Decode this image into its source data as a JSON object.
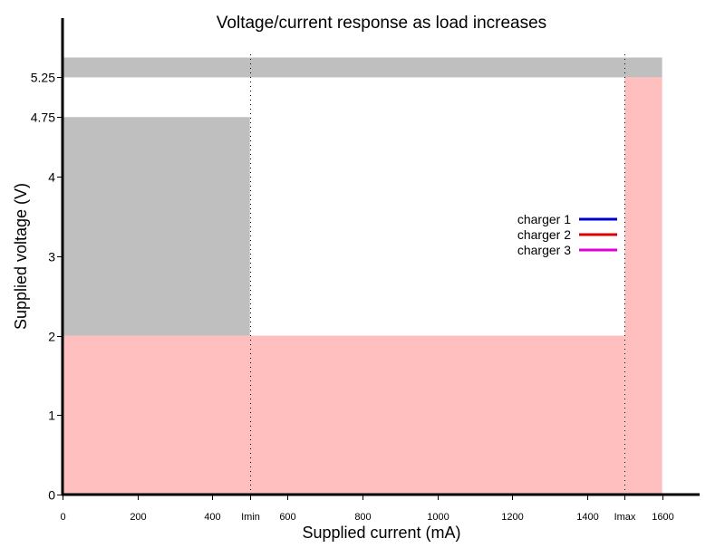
{
  "chart_data": {
    "type": "area",
    "title": "Voltage/current response as load increases",
    "xlabel": "Supplied current (mA)",
    "ylabel": "Supplied voltage (V)",
    "xlim": [
      0,
      1700
    ],
    "ylim": [
      0,
      5.95
    ],
    "xticks": [
      {
        "value": 0,
        "label": "0"
      },
      {
        "value": 200,
        "label": "200"
      },
      {
        "value": 400,
        "label": "400"
      },
      {
        "value": 500,
        "label": "Imin"
      },
      {
        "value": 600,
        "label": "600"
      },
      {
        "value": 800,
        "label": "800"
      },
      {
        "value": 1000,
        "label": "1000"
      },
      {
        "value": 1200,
        "label": "1200"
      },
      {
        "value": 1400,
        "label": "1400"
      },
      {
        "value": 1500,
        "label": "Imax"
      },
      {
        "value": 1600,
        "label": "1600"
      }
    ],
    "yticks": [
      {
        "value": 0,
        "label": "0"
      },
      {
        "value": 1,
        "label": "1"
      },
      {
        "value": 2,
        "label": "2"
      },
      {
        "value": 3,
        "label": "3"
      },
      {
        "value": 4,
        "label": "4"
      },
      {
        "value": 4.75,
        "label": "4.75"
      },
      {
        "value": 5.25,
        "label": "5.25"
      }
    ],
    "regions": [
      {
        "x": [
          0,
          500
        ],
        "y": [
          2,
          4.75
        ],
        "color": "#bfbfbf"
      },
      {
        "x": [
          0,
          1600
        ],
        "y": [
          5.25,
          5.5
        ],
        "color": "#bfbfbf"
      },
      {
        "x": [
          0,
          1500
        ],
        "y": [
          0,
          2
        ],
        "color": "#ffbfbf"
      },
      {
        "x": [
          1500,
          1600
        ],
        "y": [
          0,
          5.25
        ],
        "color": "#ffbfbf"
      }
    ],
    "reference_lines": [
      {
        "x": 500,
        "label": "Imin"
      },
      {
        "x": 1500,
        "label": "Imax"
      }
    ],
    "series": [
      {
        "name": "charger 1",
        "color": "#0000cc",
        "x": [],
        "y": []
      },
      {
        "name": "charger 2",
        "color": "#dd0000",
        "x": [],
        "y": []
      },
      {
        "name": "charger 3",
        "color": "#dd00dd",
        "x": [],
        "y": []
      }
    ],
    "legend_position": "right",
    "grid": false
  }
}
